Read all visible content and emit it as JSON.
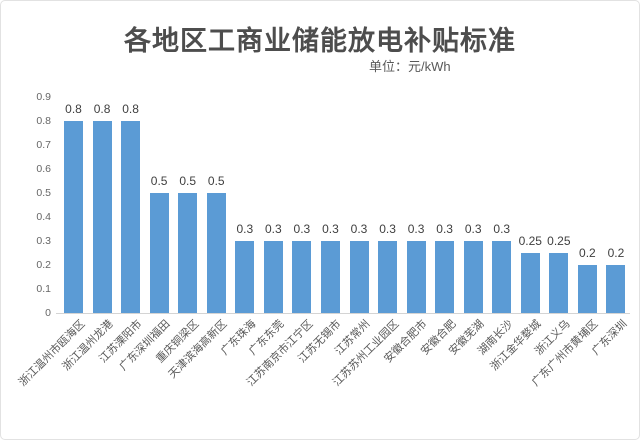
{
  "chart_data": {
    "type": "bar",
    "title": "各地区工商业储能放电补贴标准",
    "subtitle": "单位：元/kWh",
    "unit": "元/kWh",
    "categories": [
      "浙江温州市瓯海区",
      "浙江温州龙港",
      "江苏溧阳市",
      "广东深圳福田",
      "重庆铜梁区",
      "天津滨海高新区",
      "广东珠海",
      "广东东莞",
      "江苏南京市江宁区",
      "江苏无锡市",
      "江苏常州",
      "江苏苏州工业园区",
      "安徽合肥市",
      "安徽合肥",
      "安徽芜湖",
      "湖南长沙",
      "浙江金华婺城",
      "浙江义乌",
      "广东广州市黄埔区",
      "广东深圳"
    ],
    "values": [
      0.8,
      0.8,
      0.8,
      0.5,
      0.5,
      0.5,
      0.3,
      0.3,
      0.3,
      0.3,
      0.3,
      0.3,
      0.3,
      0.3,
      0.3,
      0.3,
      0.25,
      0.25,
      0.2,
      0.2
    ],
    "ylim": [
      0,
      0.9
    ],
    "yticks": [
      "0.9",
      "0.8",
      "0.7",
      "0.6",
      "0.5",
      "0.4",
      "0.3",
      "0.2",
      "0.1",
      "0"
    ],
    "bar_color": "#5b9bd5",
    "grid": false,
    "value_labels_shown": true,
    "xlabel": "",
    "ylabel": ""
  }
}
